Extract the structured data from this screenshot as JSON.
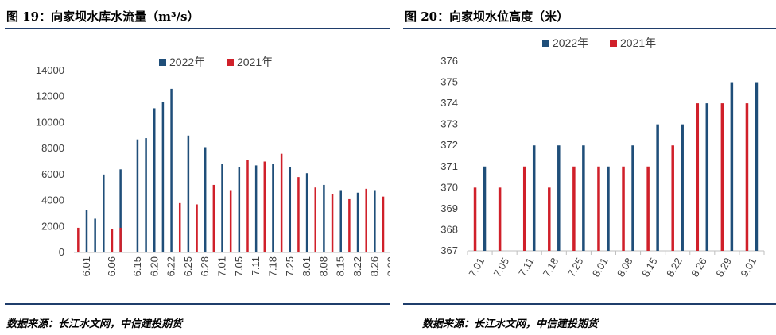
{
  "figures": [
    {
      "title": "图 19：向家坝水库水流量（m³/s）",
      "source": "数据来源：长江水文网，中信建投期货"
    },
    {
      "title": "图 20：向家坝水位高度（米）",
      "source": "数据来源：长江水文网，中信建投期货"
    }
  ],
  "colors": {
    "series_2022": "#1f4e79",
    "series_2021": "#d0202a",
    "rule": "#1f3d6b",
    "axis": "#bfbfbf"
  },
  "chart_data": [
    {
      "type": "bar",
      "title": "",
      "xlabel": "",
      "ylabel": "",
      "ylim": [
        0,
        14000
      ],
      "yticks": [
        0,
        2000,
        4000,
        6000,
        8000,
        10000,
        12000,
        14000
      ],
      "ytick_labels": [
        "0",
        "2000",
        "4000",
        "6000",
        "8000",
        "10000",
        "12000",
        "14000"
      ],
      "grid": false,
      "legend": "top-center",
      "legend_labels": [
        "2022年",
        "2021年"
      ],
      "categories": [
        "",
        "6.01",
        "",
        "",
        "6.06",
        "",
        "",
        "6.15",
        "",
        "6.20",
        "",
        "6.22",
        "",
        "6.25",
        "",
        "6.28",
        "",
        "7.01",
        "",
        "7.05",
        "",
        "7.11",
        "",
        "7.18",
        "",
        "7.25",
        "",
        "8.01",
        "",
        "8.08",
        "",
        "8.15",
        "",
        "8.22",
        "",
        "8.26",
        "",
        "8.29"
      ],
      "series": [
        {
          "name": "2022年",
          "values": [
            null,
            3300,
            2600,
            6000,
            null,
            6400,
            null,
            8700,
            8800,
            11100,
            11600,
            12600,
            null,
            9000,
            null,
            8100,
            null,
            6800,
            null,
            6600,
            null,
            6700,
            null,
            6800,
            null,
            6600,
            null,
            6100,
            null,
            5200,
            null,
            4800,
            null,
            4600,
            null,
            4800,
            null,
            4200
          ]
        },
        {
          "name": "2021年",
          "values": [
            1900,
            null,
            null,
            null,
            1800,
            1900,
            null,
            null,
            null,
            null,
            null,
            null,
            3800,
            null,
            3700,
            null,
            5200,
            null,
            4800,
            null,
            7100,
            null,
            7000,
            null,
            7600,
            null,
            5800,
            null,
            5000,
            null,
            4500,
            null,
            4100,
            null,
            4900,
            null,
            4300,
            4400
          ]
        }
      ]
    },
    {
      "type": "bar",
      "title": "",
      "xlabel": "",
      "ylabel": "",
      "ylim": [
        367,
        376
      ],
      "yticks": [
        367,
        368,
        369,
        370,
        371,
        372,
        373,
        374,
        375,
        376
      ],
      "ytick_labels": [
        "367",
        "368",
        "369",
        "370",
        "371",
        "372",
        "373",
        "374",
        "375",
        "376"
      ],
      "grid": false,
      "legend": "top-center",
      "legend_labels": [
        "2022年",
        "2021年"
      ],
      "categories": [
        "7.01",
        "7.05",
        "7.11",
        "7.18",
        "7.25",
        "8.01",
        "8.08",
        "8.15",
        "8.22",
        "8.26",
        "8.29",
        "9.01"
      ],
      "series": [
        {
          "name": "2022年",
          "values": [
            371,
            null,
            372,
            372,
            372,
            371,
            372,
            373,
            373,
            374,
            375,
            375
          ]
        },
        {
          "name": "2021年",
          "values": [
            370,
            370,
            371,
            370,
            371,
            371,
            371,
            371,
            372,
            374,
            374,
            374
          ]
        }
      ]
    }
  ]
}
